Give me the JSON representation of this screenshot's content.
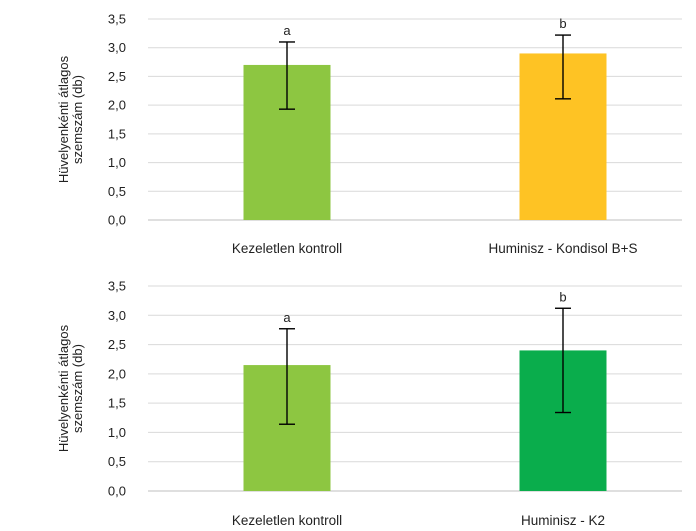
{
  "chart_data": [
    {
      "type": "bar",
      "ylabel_lines": [
        "Hüvelyenkénti átlagos",
        "szemszám (db)"
      ],
      "ylim": [
        0,
        3.5
      ],
      "yticks": [
        "0,0",
        "0,5",
        "1,0",
        "1,5",
        "2,0",
        "2,5",
        "3,0",
        "3,5"
      ],
      "grid": true,
      "categories": [
        "Kezeletlen kontroll",
        "Huminisz - Kondisol B+S"
      ],
      "values": [
        2.7,
        2.9
      ],
      "error_low": [
        1.93,
        2.11
      ],
      "error_high": [
        3.1,
        3.22
      ],
      "significance": [
        "a",
        "b"
      ],
      "colors": [
        "#8dc641",
        "#fec324"
      ]
    },
    {
      "type": "bar",
      "ylabel_lines": [
        "Hüvelyenkénti átlagos",
        "szemszám (db)"
      ],
      "ylim": [
        0,
        3.5
      ],
      "yticks": [
        "0,0",
        "0,5",
        "1,0",
        "1,5",
        "2,0",
        "2,5",
        "3,0",
        "3,5"
      ],
      "grid": true,
      "categories": [
        "Kezeletlen kontroll",
        "Huminisz - K2"
      ],
      "values": [
        2.15,
        2.4
      ],
      "error_low": [
        1.14,
        1.34
      ],
      "error_high": [
        2.77,
        3.12
      ],
      "significance": [
        "a",
        "b"
      ],
      "colors": [
        "#8dc641",
        "#0aad4c"
      ]
    }
  ]
}
